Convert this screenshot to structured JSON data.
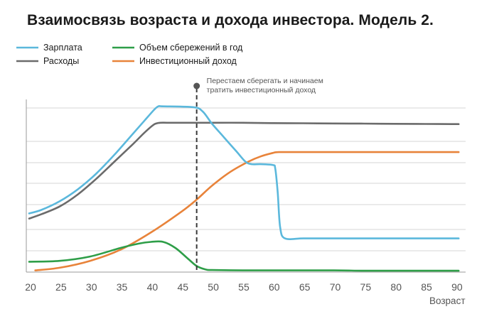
{
  "chart_data": {
    "type": "line",
    "title": "Взаимосвязь возраста и дохода инвестора. Модель 2.",
    "xlabel": "Возраст",
    "ylabel": "",
    "xlim": [
      20,
      91
    ],
    "ylim": [
      0,
      100
    ],
    "x_ticks": [
      20,
      25,
      30,
      35,
      40,
      45,
      50,
      55,
      60,
      65,
      70,
      75,
      80,
      85,
      90
    ],
    "grid": true,
    "legend_position": "top-left",
    "series": [
      {
        "name": "Зарплата",
        "color": "#5bb8dc",
        "x": [
          20,
          22,
          25,
          28,
          31,
          34,
          37,
          39,
          40.5,
          41.2,
          42,
          47,
          48.5,
          50,
          52,
          54,
          55.5,
          56.5,
          58,
          60,
          60.4,
          60.8,
          61.2,
          62,
          65,
          70,
          75,
          80,
          85,
          90.5
        ],
        "y": [
          34,
          36,
          41,
          48,
          57,
          68,
          80,
          88,
          94,
          96,
          96,
          95.5,
          93,
          86,
          78,
          70,
          64,
          62.5,
          62.5,
          62,
          60,
          46,
          26,
          19.5,
          19.5,
          19.5,
          19.5,
          19.5,
          19.5,
          19.5
        ]
      },
      {
        "name": "Расходы",
        "color": "#6b6b6b",
        "x": [
          20,
          22,
          25,
          28,
          31,
          34,
          37,
          39,
          40.5,
          41.5,
          43,
          47.5,
          50,
          55,
          60,
          65,
          70,
          75,
          80,
          85,
          90.5
        ],
        "y": [
          31,
          33.5,
          38,
          45,
          54,
          64,
          74,
          81,
          85.5,
          86.5,
          86.5,
          86.5,
          86.5,
          86.5,
          86.3,
          86.2,
          86.1,
          86,
          85.9,
          85.8,
          85.7
        ]
      },
      {
        "name": "Объем сбережений в год",
        "color": "#2e9e48",
        "x": [
          20,
          25,
          30,
          35,
          38,
          40,
          42,
          44,
          46,
          47.5,
          49,
          50,
          55,
          60,
          65,
          70,
          75,
          80,
          85,
          90.5
        ],
        "y": [
          6,
          6.5,
          9,
          14,
          16.5,
          17.5,
          17.5,
          14,
          8,
          3.5,
          1.5,
          1.2,
          1,
          1,
          1,
          1,
          0.8,
          0.8,
          0.8,
          0.8
        ]
      },
      {
        "name": "Инвестиционный доход",
        "color": "#e8833a",
        "x": [
          21,
          25,
          30,
          35,
          40,
          45,
          47.5,
          50,
          53,
          56,
          58,
          60,
          61,
          65,
          70,
          75,
          80,
          85,
          90.5
        ],
        "y": [
          1,
          2.5,
          6.5,
          13,
          23,
          35,
          42,
          50,
          58,
          64,
          67,
          69,
          69.5,
          69.5,
          69.5,
          69.5,
          69.5,
          69.5,
          69.5
        ]
      }
    ],
    "annotations": [
      {
        "x": 47.5,
        "lines": [
          "Перестаем сберегать и начинаем",
          "тратить инвестиционный доход"
        ]
      }
    ]
  }
}
